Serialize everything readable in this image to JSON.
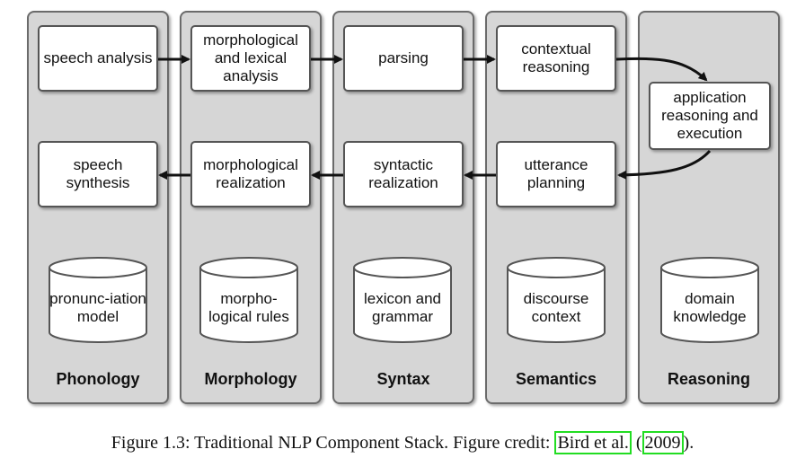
{
  "columns": [
    {
      "name": "Phonology",
      "top": "speech analysis",
      "bottom": "speech synthesis",
      "store": "pronunc-iation model"
    },
    {
      "name": "Morphology",
      "top": "morphological and lexical analysis",
      "bottom": "morphological realization",
      "store": "morpho-logical rules"
    },
    {
      "name": "Syntax",
      "top": "parsing",
      "bottom": "syntactic realization",
      "store": "lexicon and grammar"
    },
    {
      "name": "Semantics",
      "top": "contextual reasoning",
      "bottom": "utterance planning",
      "store": "discourse context"
    },
    {
      "name": "Reasoning",
      "middle": "application reasoning and execution",
      "store": "domain knowledge"
    }
  ],
  "caption": {
    "prefix": "Figure 1.3: Traditional NLP Component Stack. Figure credit: ",
    "author": "Bird et al.",
    "open": " (",
    "year": "2009",
    "close": ")."
  }
}
